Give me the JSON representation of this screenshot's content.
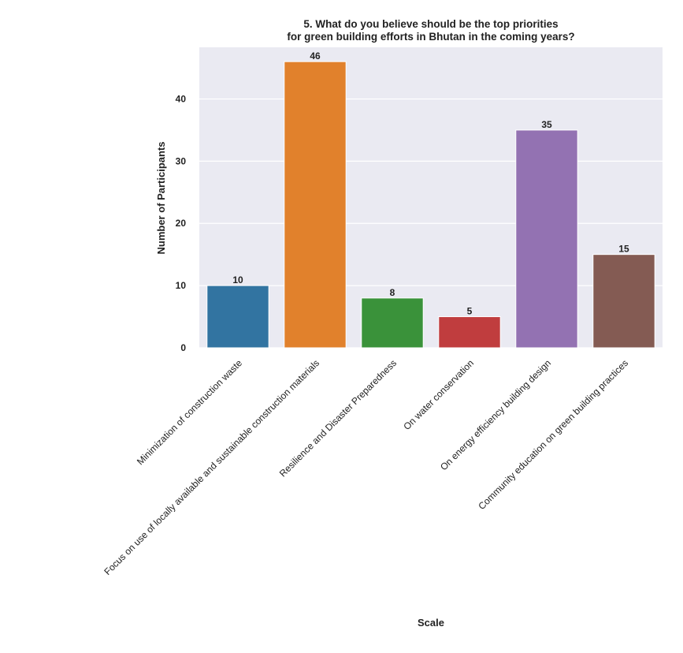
{
  "chart_data": {
    "type": "bar",
    "title_lines": [
      "5.  What do you believe should be the top priorities",
      "for green building efforts in Bhutan in the coming years?"
    ],
    "xlabel": "Scale",
    "ylabel": "Number of Participants",
    "categories": [
      "Minimization of construction waste",
      "Focus on use of locally available and sustainable construction materials",
      "Resilience and Disaster Preparedness",
      "On water conservation",
      "On energy efficiency building design",
      "Community education on green building practices"
    ],
    "values": [
      10,
      46,
      8,
      5,
      35,
      15
    ],
    "data_labels": [
      "10",
      "46",
      "8",
      "5",
      "35",
      "15"
    ],
    "colors": [
      "#3274a1",
      "#e1812c",
      "#3a923a",
      "#c03d3e",
      "#9372b2",
      "#845b53"
    ],
    "yticks": [
      0,
      10,
      20,
      30,
      40
    ],
    "ylim": [
      0,
      48.3
    ],
    "grid": true,
    "background": "#eaeaf2",
    "legend": "none"
  }
}
